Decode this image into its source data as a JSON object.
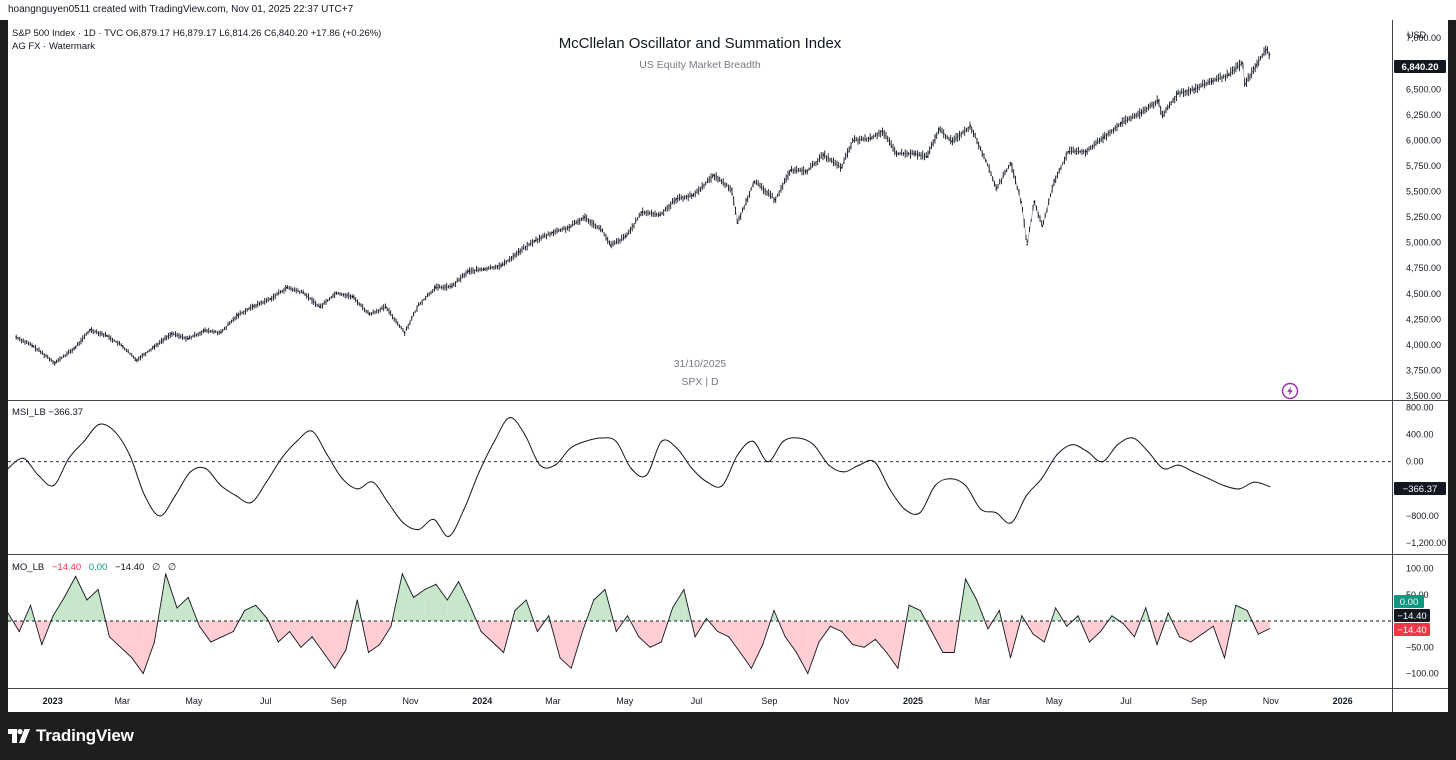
{
  "header": {
    "credit": "hoangnguyen0511 created with TradingView.com, Nov 01, 2025 22:37 UTC+7"
  },
  "brand": {
    "name": "TradingView"
  },
  "main_pane": {
    "legend_line1": "S&P 500 Index · 1D · TVC  O6,879.17  H6,879.17  L6,814.26  C6,840.20  +17.86 (+0.26%)",
    "legend_line2": "AG FX · Watermark",
    "title": "McCllelan Oscillator and Summation Index",
    "subtitle": "US Equity Market Breadth",
    "watermark_date": "31/10/2025",
    "watermark_symbol": "SPX | D",
    "currency": "USD",
    "last_price_label": "6,840.20"
  },
  "msi_pane": {
    "legend": "MSI_LB  −366.37",
    "last_label": "−366.37"
  },
  "mo_pane": {
    "legend_name": "MO_LB",
    "legend_v1": "−14.40",
    "legend_v2": "0.00",
    "legend_v3": "−14.40",
    "legend_v4": "∅",
    "legend_v5": "∅",
    "label_zero": "0.00",
    "label_a": "−14.40",
    "label_b": "−14.40"
  },
  "colors": {
    "price": "#131722",
    "positive": "#089981",
    "negative": "#f23645",
    "positive_fill": "#c8e6c9",
    "negative_fill": "#ffcdd2",
    "accent": "#9c27b0"
  },
  "chart_data": [
    {
      "type": "line",
      "name": "S&P 500 Index 1D (approx. daily close)",
      "x_dates": [
        "2022-12-01",
        "2022-12-15",
        "2023-01-03",
        "2023-01-20",
        "2023-02-02",
        "2023-02-16",
        "2023-03-01",
        "2023-03-13",
        "2023-03-28",
        "2023-04-12",
        "2023-04-26",
        "2023-05-10",
        "2023-05-24",
        "2023-06-07",
        "2023-06-21",
        "2023-07-05",
        "2023-07-19",
        "2023-08-02",
        "2023-08-16",
        "2023-08-30",
        "2023-09-13",
        "2023-09-27",
        "2023-10-11",
        "2023-10-27",
        "2023-11-08",
        "2023-11-22",
        "2023-12-06",
        "2023-12-20",
        "2024-01-03",
        "2024-01-18",
        "2024-02-01",
        "2024-02-15",
        "2024-03-01",
        "2024-03-15",
        "2024-03-28",
        "2024-04-12",
        "2024-04-19",
        "2024-05-02",
        "2024-05-16",
        "2024-05-31",
        "2024-06-14",
        "2024-06-28",
        "2024-07-16",
        "2024-07-31",
        "2024-08-05",
        "2024-08-19",
        "2024-09-06",
        "2024-09-19",
        "2024-10-03",
        "2024-10-17",
        "2024-11-01",
        "2024-11-11",
        "2024-11-26",
        "2024-12-06",
        "2024-12-18",
        "2025-01-02",
        "2025-01-13",
        "2025-01-23",
        "2025-02-03",
        "2025-02-19",
        "2025-03-04",
        "2025-03-13",
        "2025-03-25",
        "2025-04-03",
        "2025-04-08",
        "2025-04-14",
        "2025-04-21",
        "2025-05-01",
        "2025-05-13",
        "2025-05-28",
        "2025-06-12",
        "2025-06-27",
        "2025-07-14",
        "2025-07-28",
        "2025-08-01",
        "2025-08-14",
        "2025-08-28",
        "2025-09-12",
        "2025-09-26",
        "2025-10-08",
        "2025-10-10",
        "2025-10-20",
        "2025-10-28",
        "2025-10-31"
      ],
      "values": [
        4076,
        3990,
        3825,
        3970,
        4150,
        4090,
        3990,
        3850,
        3980,
        4110,
        4060,
        4140,
        4120,
        4290,
        4380,
        4450,
        4560,
        4510,
        4370,
        4510,
        4470,
        4300,
        4370,
        4120,
        4390,
        4560,
        4570,
        4720,
        4740,
        4780,
        4910,
        5020,
        5100,
        5150,
        5250,
        5120,
        4970,
        5060,
        5300,
        5270,
        5430,
        5460,
        5660,
        5520,
        5190,
        5600,
        5420,
        5710,
        5700,
        5860,
        5730,
        6000,
        6020,
        6090,
        5870,
        5870,
        5840,
        6110,
        5990,
        6140,
        5800,
        5530,
        5780,
        5400,
        4980,
        5400,
        5160,
        5600,
        5890,
        5890,
        6030,
        6170,
        6270,
        6390,
        6240,
        6460,
        6500,
        6580,
        6640,
        6760,
        6550,
        6740,
        6890,
        6840
      ],
      "ylim": [
        3500,
        7100
      ],
      "yticks": [
        "3,500.00",
        "3,750.00",
        "4,000.00",
        "4,250.00",
        "4,500.00",
        "4,750.00",
        "5,000.00",
        "5,250.00",
        "5,500.00",
        "5,750.00",
        "6,000.00",
        "6,250.00",
        "6,500.00",
        "6,750.00",
        "7,000.00"
      ]
    },
    {
      "type": "line",
      "name": "MSI_LB",
      "values": [
        -100,
        50,
        -200,
        -350,
        50,
        300,
        550,
        450,
        100,
        -500,
        -800,
        -500,
        -150,
        -100,
        -350,
        -500,
        -600,
        -300,
        50,
        300,
        450,
        100,
        -250,
        -400,
        -300,
        -600,
        -900,
        -1000,
        -850,
        -1100,
        -700,
        -150,
        300,
        650,
        400,
        -50,
        -50,
        200,
        300,
        350,
        300,
        -100,
        -200,
        300,
        200,
        -100,
        -300,
        -350,
        100,
        300,
        0,
        300,
        350,
        250,
        -50,
        -150,
        -50,
        0,
        -400,
        -700,
        -750,
        -350,
        -250,
        -350,
        -700,
        -750,
        -900,
        -500,
        -250,
        100,
        250,
        150,
        0,
        250,
        350,
        150,
        -100,
        -50,
        -150,
        -250,
        -350,
        -400,
        -300,
        -366.37
      ],
      "ylim": [
        -1300,
        850
      ],
      "yticks": [
        "−1,200.00",
        "−800.00",
        "0.00",
        "400.00",
        "800.00"
      ]
    },
    {
      "type": "area",
      "name": "MO_LB",
      "values": [
        15,
        -20,
        30,
        -45,
        10,
        45,
        85,
        40,
        60,
        -30,
        -50,
        -70,
        -100,
        -40,
        90,
        25,
        45,
        -10,
        -40,
        -30,
        -20,
        20,
        30,
        5,
        -40,
        -20,
        -50,
        -30,
        -60,
        -90,
        -55,
        40,
        -60,
        -45,
        -10,
        90,
        45,
        60,
        70,
        40,
        75,
        30,
        -20,
        -40,
        -60,
        20,
        40,
        -20,
        10,
        -70,
        -90,
        -20,
        40,
        60,
        -20,
        10,
        -30,
        -50,
        -40,
        25,
        60,
        -30,
        5,
        -20,
        -30,
        -60,
        -90,
        -45,
        20,
        -30,
        -60,
        -100,
        -40,
        -10,
        -20,
        -45,
        -50,
        -35,
        -60,
        -90,
        30,
        20,
        -20,
        -60,
        -60,
        80,
        40,
        -15,
        20,
        -70,
        10,
        -25,
        -40,
        25,
        -10,
        10,
        -40,
        -20,
        10,
        -5,
        -30,
        25,
        -45,
        15,
        -30,
        -40,
        -25,
        -10,
        -70,
        30,
        20,
        -25,
        -14.4
      ],
      "ylim": [
        -120,
        120
      ],
      "yticks": [
        "−100.00",
        "−50.00",
        "0.00",
        "50.00",
        "100.00"
      ]
    }
  ],
  "time_axis": {
    "labels": [
      "2023",
      "Mar",
      "May",
      "Jul",
      "Sep",
      "Nov",
      "2024",
      "Mar",
      "May",
      "Jul",
      "Sep",
      "Nov",
      "2025",
      "Mar",
      "May",
      "Jul",
      "Sep",
      "Nov",
      "2026"
    ],
    "dates": [
      "2023-01-01",
      "2023-03-01",
      "2023-05-01",
      "2023-07-01",
      "2023-09-01",
      "2023-11-01",
      "2024-01-01",
      "2024-03-01",
      "2024-05-01",
      "2024-07-01",
      "2024-09-01",
      "2024-11-01",
      "2025-01-01",
      "2025-03-01",
      "2025-05-01",
      "2025-07-01",
      "2025-09-01",
      "2025-11-01",
      "2026-01-01"
    ]
  }
}
